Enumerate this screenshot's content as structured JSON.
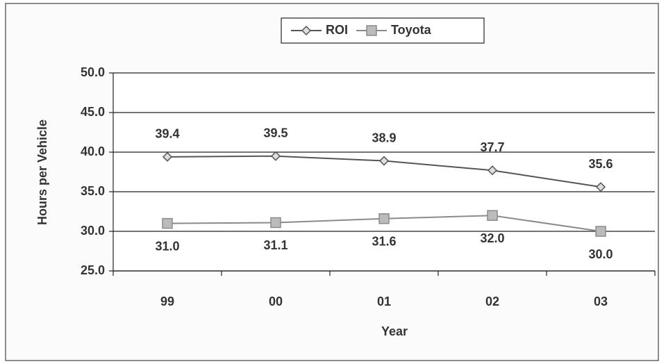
{
  "chart_data": {
    "type": "line",
    "x_label": "Year",
    "y_label": "Hours per Vehicle",
    "categories": [
      "99",
      "00",
      "01",
      "02",
      "03"
    ],
    "series": [
      {
        "name": "ROI",
        "color": "#555555",
        "marker": "diamond",
        "label_position": "above",
        "values": [
          39.4,
          39.5,
          38.9,
          37.7,
          35.6
        ],
        "value_labels": [
          "39.4",
          "39.5",
          "38.9",
          "37.7",
          "35.6"
        ]
      },
      {
        "name": "Toyota",
        "color": "#8a8a8a",
        "marker": "square",
        "label_position": "below",
        "values": [
          31.0,
          31.1,
          31.6,
          32.0,
          30.0
        ],
        "value_labels": [
          "31.0",
          "31.1",
          "31.6",
          "32.0",
          "30.0"
        ]
      }
    ],
    "ylim": [
      25,
      50
    ],
    "yticks": [
      {
        "value": 25,
        "label": "25.0"
      },
      {
        "value": 30,
        "label": "30.0"
      },
      {
        "value": 35,
        "label": "35.0"
      },
      {
        "value": 40,
        "label": "40.0"
      },
      {
        "value": 45,
        "label": "45.0"
      },
      {
        "value": 50,
        "label": "50.0"
      }
    ],
    "grid": true,
    "legend": "top"
  }
}
